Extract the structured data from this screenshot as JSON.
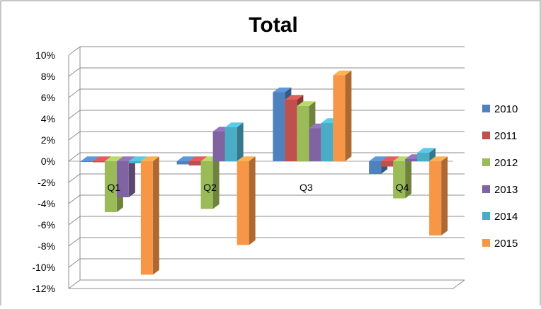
{
  "chart_data": {
    "type": "bar",
    "title": "Total",
    "xlabel": "",
    "ylabel": "",
    "categories": [
      "Q1",
      "Q2",
      "Q3",
      "Q4"
    ],
    "ylim": [
      -12,
      10
    ],
    "y_ticks": [
      "10%",
      "8%",
      "6%",
      "4%",
      "2%",
      "0%",
      "-2%",
      "-4%",
      "-6%",
      "-8%",
      "-10%",
      "-12%"
    ],
    "y_tick_values": [
      10,
      8,
      6,
      4,
      2,
      0,
      -2,
      -4,
      -6,
      -8,
      -10,
      -12
    ],
    "grid": true,
    "legend_position": "right",
    "series": [
      {
        "name": "2010",
        "color": "#4F81BD",
        "values": [
          0.0,
          -0.3,
          6.5,
          -1.2
        ]
      },
      {
        "name": "2011",
        "color": "#C0504D",
        "values": [
          -0.1,
          -0.4,
          5.8,
          -0.5
        ]
      },
      {
        "name": "2012",
        "color": "#9BBB59",
        "values": [
          -4.8,
          -4.5,
          5.2,
          -3.5
        ]
      },
      {
        "name": "2013",
        "color": "#8064A2",
        "values": [
          -3.4,
          2.8,
          3.1,
          0.2
        ]
      },
      {
        "name": "2014",
        "color": "#4BACC6",
        "values": [
          -0.2,
          3.2,
          3.6,
          0.8
        ]
      },
      {
        "name": "2015",
        "color": "#F79646",
        "values": [
          -10.7,
          -7.9,
          8.1,
          -7.0
        ]
      }
    ]
  }
}
